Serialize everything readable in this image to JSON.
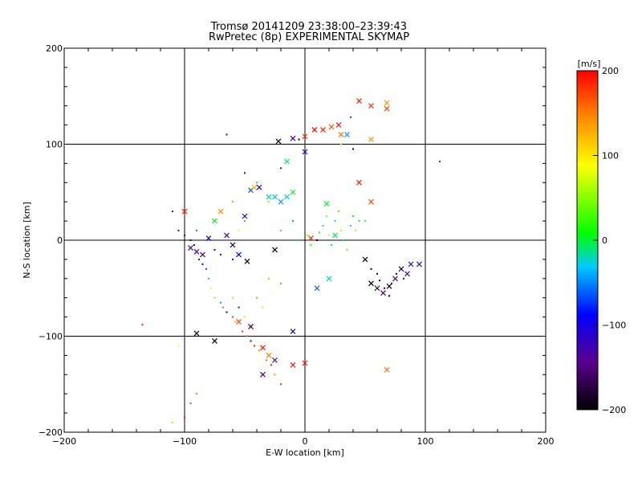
{
  "chart_data": {
    "type": "scatter",
    "title": "Tromsø 20141209 23:38:00–23:39:43",
    "subtitle": "RwPretec (8p) EXPERIMENTAL SKYMAP",
    "xlabel": "E-W location [km]",
    "ylabel": "N-S location [km]",
    "xlim": [
      -200,
      200
    ],
    "ylim": [
      -200,
      200
    ],
    "xticks": [
      -200,
      -100,
      0,
      100,
      200
    ],
    "yticks": [
      -200,
      -100,
      0,
      100,
      200
    ],
    "xtick_labels": [
      "−200",
      "−100",
      "0",
      "100",
      "200"
    ],
    "ytick_labels": [
      "−200",
      "−100",
      "0",
      "100",
      "200"
    ],
    "grid": true,
    "colorbar": {
      "label": "[m/s]",
      "range": [
        -200,
        200
      ],
      "ticks": [
        200,
        100,
        0,
        -100,
        -200
      ],
      "tick_labels": [
        "200",
        "100",
        "0",
        "−100",
        "−200"
      ],
      "colors": [
        "#000000",
        "#5a008c",
        "#0000ff",
        "#00c8ff",
        "#00ff00",
        "#ffff00",
        "#ff8c00",
        "#ff0000"
      ]
    },
    "series": [
      {
        "marker": "x",
        "points": [
          {
            "x": -100,
            "y": 30,
            "v": 190
          },
          {
            "x": -95,
            "y": -8,
            "v": -150
          },
          {
            "x": -90,
            "y": -12,
            "v": -120
          },
          {
            "x": -85,
            "y": -15,
            "v": -160
          },
          {
            "x": -80,
            "y": 2,
            "v": -100
          },
          {
            "x": -75,
            "y": 20,
            "v": 30
          },
          {
            "x": -70,
            "y": 30,
            "v": 140
          },
          {
            "x": -65,
            "y": 5,
            "v": -130
          },
          {
            "x": -60,
            "y": -5,
            "v": -170
          },
          {
            "x": -55,
            "y": -15,
            "v": -90
          },
          {
            "x": -50,
            "y": 25,
            "v": -110
          },
          {
            "x": -48,
            "y": -22,
            "v": -200
          },
          {
            "x": -45,
            "y": 52,
            "v": -60
          },
          {
            "x": -42,
            "y": 55,
            "v": 120
          },
          {
            "x": -38,
            "y": 55,
            "v": -120
          },
          {
            "x": -30,
            "y": 45,
            "v": -10
          },
          {
            "x": -25,
            "y": 45,
            "v": -30
          },
          {
            "x": -20,
            "y": 40,
            "v": -40
          },
          {
            "x": -15,
            "y": 45,
            "v": -20
          },
          {
            "x": -10,
            "y": 50,
            "v": 30
          },
          {
            "x": -15,
            "y": 82,
            "v": 10
          },
          {
            "x": -22,
            "y": 103,
            "v": -200
          },
          {
            "x": -10,
            "y": 106,
            "v": -120
          },
          {
            "x": 0,
            "y": 92,
            "v": -110
          },
          {
            "x": 0,
            "y": 108,
            "v": 180
          },
          {
            "x": 8,
            "y": 115,
            "v": 200
          },
          {
            "x": 15,
            "y": 115,
            "v": 190
          },
          {
            "x": 22,
            "y": 118,
            "v": 170
          },
          {
            "x": 28,
            "y": 120,
            "v": 190
          },
          {
            "x": 30,
            "y": 110,
            "v": 150
          },
          {
            "x": 35,
            "y": 110,
            "v": -40
          },
          {
            "x": 45,
            "y": 145,
            "v": 190
          },
          {
            "x": 55,
            "y": 140,
            "v": 180
          },
          {
            "x": 68,
            "y": 143,
            "v": 140
          },
          {
            "x": 68,
            "y": 137,
            "v": 170
          },
          {
            "x": 55,
            "y": 105,
            "v": 140
          },
          {
            "x": 45,
            "y": 60,
            "v": 190
          },
          {
            "x": 55,
            "y": 40,
            "v": 170
          },
          {
            "x": 50,
            "y": -20,
            "v": -200
          },
          {
            "x": 55,
            "y": -45,
            "v": -200
          },
          {
            "x": 60,
            "y": -50,
            "v": -180
          },
          {
            "x": 65,
            "y": -55,
            "v": -160
          },
          {
            "x": 70,
            "y": -48,
            "v": -190
          },
          {
            "x": 75,
            "y": -40,
            "v": -150
          },
          {
            "x": 80,
            "y": -30,
            "v": -170
          },
          {
            "x": 85,
            "y": -35,
            "v": -130
          },
          {
            "x": 88,
            "y": -25,
            "v": -110
          },
          {
            "x": 95,
            "y": -25,
            "v": -90
          },
          {
            "x": 68,
            "y": -135,
            "v": 150
          },
          {
            "x": -90,
            "y": -97,
            "v": -200
          },
          {
            "x": -75,
            "y": -105,
            "v": -200
          },
          {
            "x": -55,
            "y": -85,
            "v": 170
          },
          {
            "x": -45,
            "y": -90,
            "v": -170
          },
          {
            "x": -35,
            "y": -112,
            "v": 190
          },
          {
            "x": -30,
            "y": -120,
            "v": 150
          },
          {
            "x": -25,
            "y": -125,
            "v": -130
          },
          {
            "x": -35,
            "y": -140,
            "v": -150
          },
          {
            "x": -10,
            "y": -130,
            "v": 190
          },
          {
            "x": 0,
            "y": -128,
            "v": 190
          },
          {
            "x": -10,
            "y": -95,
            "v": -100
          },
          {
            "x": 10,
            "y": -50,
            "v": -60
          },
          {
            "x": 20,
            "y": -40,
            "v": -20
          },
          {
            "x": 25,
            "y": 5,
            "v": 10
          },
          {
            "x": 18,
            "y": 38,
            "v": 20
          },
          {
            "x": -25,
            "y": -10,
            "v": -200
          },
          {
            "x": 5,
            "y": 2,
            "v": 180
          }
        ]
      },
      {
        "marker": "dot",
        "points": [
          {
            "x": -110,
            "y": 30,
            "v": -120
          },
          {
            "x": -105,
            "y": 10,
            "v": -130
          },
          {
            "x": -100,
            "y": 5,
            "v": -80
          },
          {
            "x": -95,
            "y": 0,
            "v": -160
          },
          {
            "x": -92,
            "y": -5,
            "v": -110
          },
          {
            "x": -90,
            "y": 10,
            "v": -50
          },
          {
            "x": -88,
            "y": -20,
            "v": -140
          },
          {
            "x": -85,
            "y": -25,
            "v": -90
          },
          {
            "x": -82,
            "y": -30,
            "v": -60
          },
          {
            "x": -80,
            "y": -40,
            "v": 10
          },
          {
            "x": -78,
            "y": -50,
            "v": 80
          },
          {
            "x": -75,
            "y": -60,
            "v": 120
          },
          {
            "x": -70,
            "y": -65,
            "v": -40
          },
          {
            "x": -68,
            "y": -70,
            "v": 150
          },
          {
            "x": -65,
            "y": -75,
            "v": -180
          },
          {
            "x": -60,
            "y": -80,
            "v": 170
          },
          {
            "x": -58,
            "y": -85,
            "v": 120
          },
          {
            "x": -52,
            "y": -95,
            "v": 180
          },
          {
            "x": -48,
            "y": -100,
            "v": 160
          },
          {
            "x": -45,
            "y": -105,
            "v": -170
          },
          {
            "x": -42,
            "y": -110,
            "v": 190
          },
          {
            "x": -38,
            "y": -115,
            "v": 130
          },
          {
            "x": -32,
            "y": -125,
            "v": 160
          },
          {
            "x": -28,
            "y": -130,
            "v": 190
          },
          {
            "x": -25,
            "y": -140,
            "v": 140
          },
          {
            "x": -20,
            "y": -150,
            "v": 180
          },
          {
            "x": -60,
            "y": -60,
            "v": 60
          },
          {
            "x": -55,
            "y": -70,
            "v": -100
          },
          {
            "x": -50,
            "y": -80,
            "v": 100
          },
          {
            "x": -40,
            "y": -60,
            "v": 40
          },
          {
            "x": -35,
            "y": -70,
            "v": 110
          },
          {
            "x": -30,
            "y": -40,
            "v": 130
          },
          {
            "x": -20,
            "y": -45,
            "v": 150
          },
          {
            "x": -105,
            "y": -110,
            "v": 90
          },
          {
            "x": -110,
            "y": -190,
            "v": 110
          },
          {
            "x": -100,
            "y": -185,
            "v": 190
          },
          {
            "x": -95,
            "y": -170,
            "v": 170
          },
          {
            "x": -90,
            "y": -160,
            "v": 150
          },
          {
            "x": -135,
            "y": -88,
            "v": 190
          },
          {
            "x": -65,
            "y": 110,
            "v": -160
          },
          {
            "x": -50,
            "y": 70,
            "v": -120
          },
          {
            "x": -40,
            "y": 60,
            "v": 20
          },
          {
            "x": -30,
            "y": 40,
            "v": 60
          },
          {
            "x": -60,
            "y": 40,
            "v": 40
          },
          {
            "x": -55,
            "y": 10,
            "v": 80
          },
          {
            "x": -20,
            "y": 10,
            "v": 40
          },
          {
            "x": -10,
            "y": 20,
            "v": -40
          },
          {
            "x": -5,
            "y": 0,
            "v": 10
          },
          {
            "x": 2,
            "y": 5,
            "v": 60
          },
          {
            "x": 5,
            "y": -5,
            "v": 30
          },
          {
            "x": 10,
            "y": 0,
            "v": -200
          },
          {
            "x": 12,
            "y": 8,
            "v": 40
          },
          {
            "x": 15,
            "y": 15,
            "v": 20
          },
          {
            "x": 18,
            "y": 25,
            "v": 60
          },
          {
            "x": 20,
            "y": 5,
            "v": 80
          },
          {
            "x": 22,
            "y": -5,
            "v": 10
          },
          {
            "x": 25,
            "y": 20,
            "v": -20
          },
          {
            "x": 28,
            "y": 30,
            "v": 40
          },
          {
            "x": 30,
            "y": 10,
            "v": 70
          },
          {
            "x": 32,
            "y": 0,
            "v": 30
          },
          {
            "x": 35,
            "y": -10,
            "v": 50
          },
          {
            "x": 38,
            "y": 15,
            "v": -10
          },
          {
            "x": 40,
            "y": 25,
            "v": 30
          },
          {
            "x": 42,
            "y": 10,
            "v": 60
          },
          {
            "x": 45,
            "y": 20,
            "v": 20
          },
          {
            "x": 50,
            "y": 20,
            "v": 40
          },
          {
            "x": 55,
            "y": -30,
            "v": -200
          },
          {
            "x": 60,
            "y": -35,
            "v": -180
          },
          {
            "x": 62,
            "y": -42,
            "v": -190
          },
          {
            "x": 66,
            "y": -50,
            "v": -170
          },
          {
            "x": 70,
            "y": -58,
            "v": -200
          },
          {
            "x": 72,
            "y": -45,
            "v": -150
          },
          {
            "x": 76,
            "y": -35,
            "v": -190
          },
          {
            "x": 82,
            "y": -40,
            "v": -120
          },
          {
            "x": 40,
            "y": 95,
            "v": -200
          },
          {
            "x": 30,
            "y": 100,
            "v": 110
          },
          {
            "x": 38,
            "y": 128,
            "v": 190
          },
          {
            "x": 112,
            "y": 82,
            "v": 200
          },
          {
            "x": -5,
            "y": 105,
            "v": -200
          },
          {
            "x": -20,
            "y": 75,
            "v": -140
          },
          {
            "x": -50,
            "y": 20,
            "v": 150
          },
          {
            "x": -70,
            "y": -15,
            "v": -130
          },
          {
            "x": -75,
            "y": -10,
            "v": -170
          },
          {
            "x": -60,
            "y": -20,
            "v": -110
          }
        ]
      }
    ]
  }
}
